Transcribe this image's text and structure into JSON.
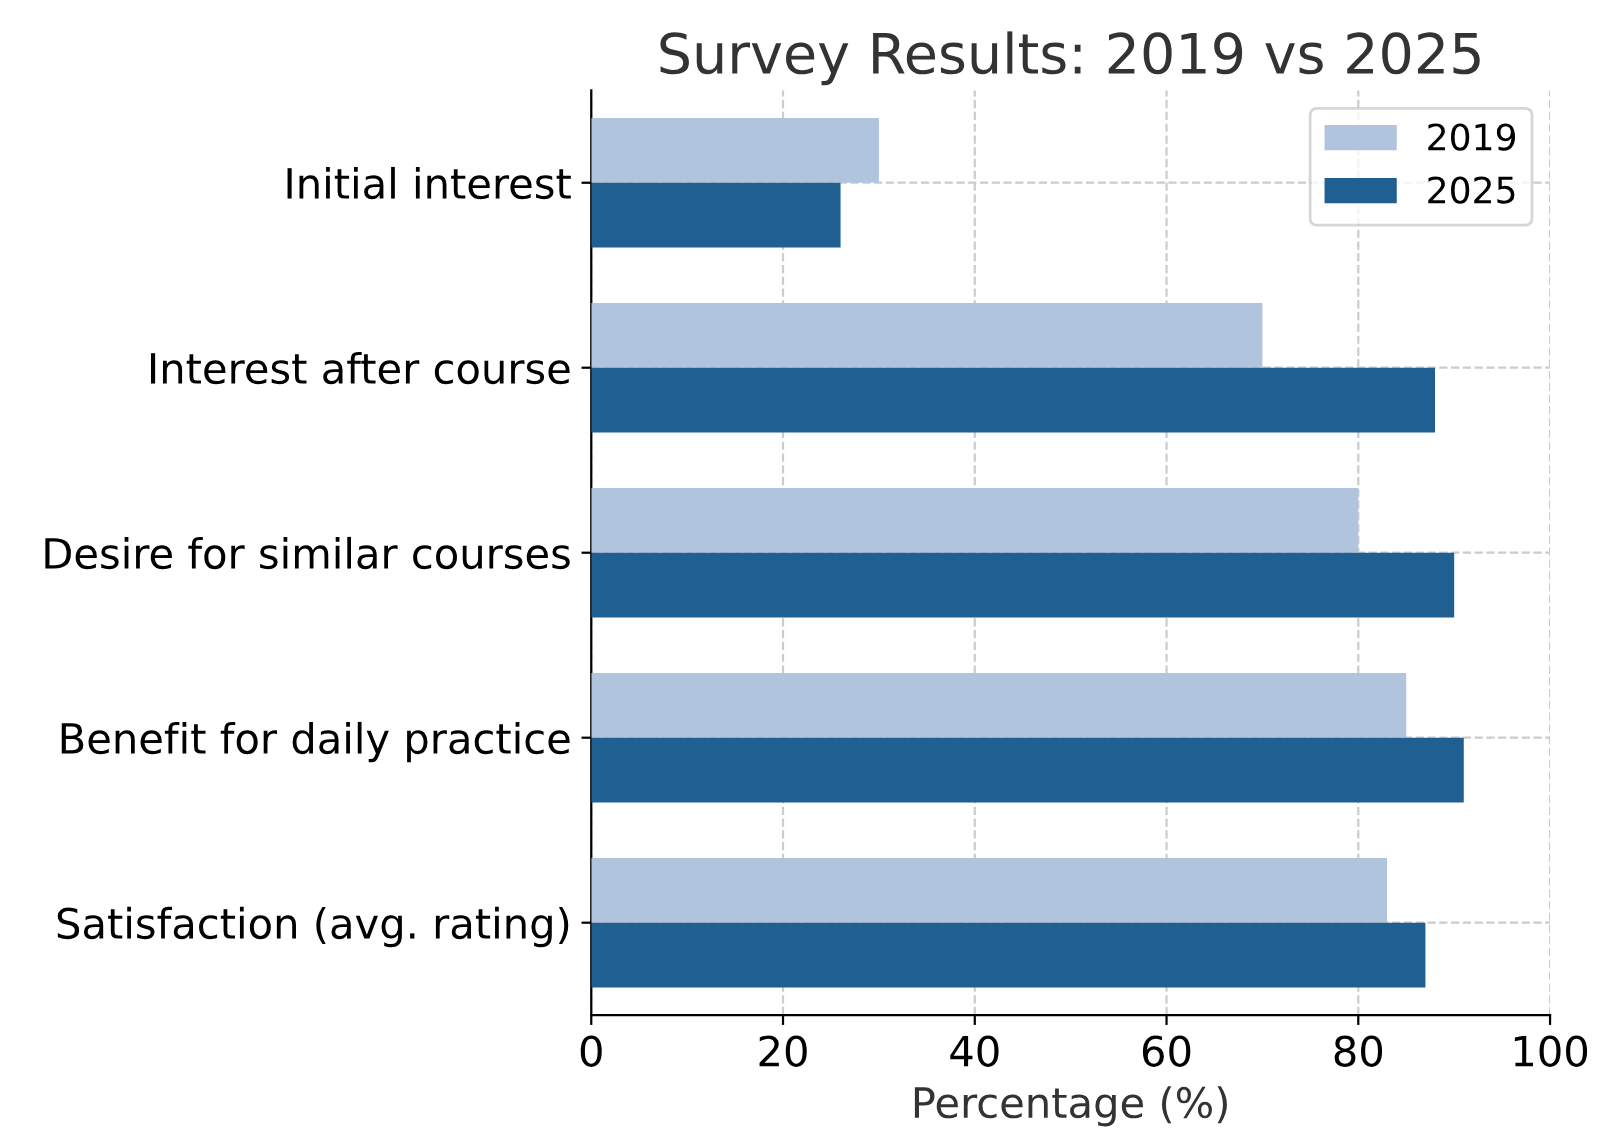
{
  "chart_data": {
    "type": "bar",
    "orientation": "horizontal",
    "title": "Survey Results: 2019 vs 2025",
    "xlabel": "Percentage (%)",
    "categories": [
      "Initial interest",
      "Interest after course",
      "Desire for similar courses",
      "Benefit for daily practice",
      "Satisfaction (avg. rating)"
    ],
    "series": [
      {
        "name": "2019",
        "color": "#b0c4de",
        "values": [
          30,
          70,
          80,
          85,
          83
        ]
      },
      {
        "name": "2025",
        "color": "#1f5f91",
        "values": [
          26,
          88,
          90,
          91,
          87
        ]
      }
    ],
    "xlim": [
      0,
      100
    ],
    "xticks": [
      0,
      20,
      40,
      60,
      80,
      100
    ],
    "grid": true,
    "legend": "top right"
  }
}
